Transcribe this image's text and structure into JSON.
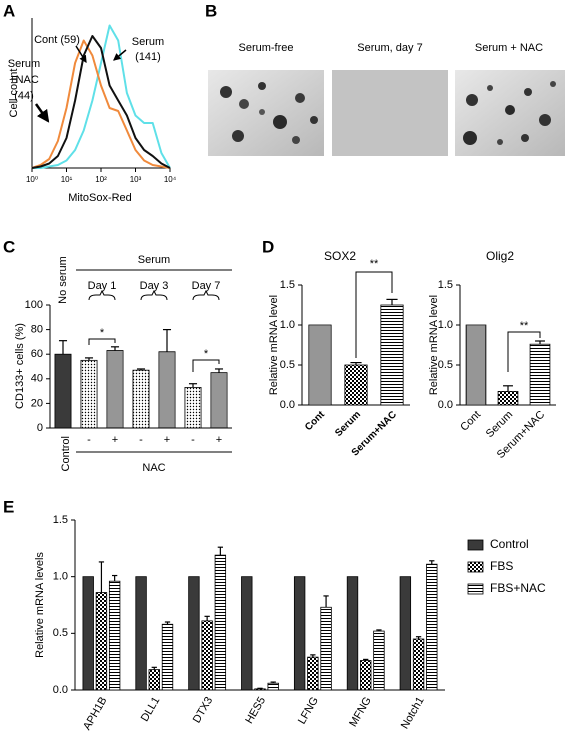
{
  "chart_data": [
    {
      "panel": "A",
      "type": "line",
      "xlabel": "MitoSox-Red",
      "ylabel": "Cell count",
      "log_x": true,
      "x": [
        1,
        1.78,
        3.16,
        5.62,
        10,
        17.8,
        31.6,
        56.2,
        100,
        178,
        316,
        562,
        1000,
        1780,
        3160,
        5620,
        10000
      ],
      "series": [
        {
          "color": "#5fe0e8",
          "values": [
            0,
            0,
            1,
            2,
            5,
            12,
            25,
            45,
            70,
            95,
            85,
            50,
            35,
            30,
            30,
            10,
            0
          ]
        },
        {
          "color": "#f08a3c",
          "values": [
            0,
            2,
            6,
            18,
            40,
            70,
            85,
            75,
            55,
            40,
            38,
            25,
            12,
            5,
            2,
            1,
            0
          ]
        },
        {
          "color": "#111111",
          "values": [
            0,
            1,
            3,
            8,
            20,
            45,
            75,
            88,
            80,
            55,
            45,
            35,
            20,
            12,
            8,
            3,
            0
          ]
        }
      ],
      "xlim": [
        1,
        10000
      ],
      "xticks": [
        {
          "value": 1,
          "label": "10⁰"
        },
        {
          "value": 10,
          "label": "10¹"
        },
        {
          "value": 100,
          "label": "10²"
        },
        {
          "value": 1000,
          "label": "10³"
        },
        {
          "value": 10000,
          "label": "10⁴"
        }
      ],
      "ylim": [
        0,
        100
      ],
      "annotations": [
        "Cont (59)",
        "Serum",
        "(141)",
        "Serum",
        "+NAC",
        "(44)"
      ]
    },
    {
      "panel": "C",
      "type": "bar",
      "ylabel": "CD133+ cells (%)",
      "categories": [
        "Control",
        "-",
        "+",
        "-",
        "+",
        "-",
        "+"
      ],
      "values": [
        60,
        55,
        63,
        47,
        62,
        33,
        45
      ],
      "errors": [
        11,
        2,
        3,
        1,
        18,
        3,
        3
      ],
      "patterns": [
        "dark",
        "dots",
        "dense",
        "dots",
        "dense",
        "dots",
        "dense"
      ],
      "ylim": [
        0,
        100
      ],
      "yticks": [
        0,
        20,
        40,
        60,
        80,
        100
      ],
      "annotations": [
        "No serum",
        "Serum",
        "Day 1",
        "Day 3",
        "Day 7",
        "*",
        "*",
        "NAC"
      ]
    },
    {
      "panel": "D",
      "type": "bar",
      "title": "SOX2",
      "ylabel": "Relative mRNA level",
      "categories": [
        "Cont",
        "Serum",
        "Serum+NAC"
      ],
      "values": [
        1.0,
        0.5,
        1.25
      ],
      "errors": [
        null,
        0.03,
        0.07
      ],
      "patterns": [
        "dense",
        "checker",
        "hlines"
      ],
      "ylim": [
        0,
        1.5
      ],
      "yticks": [
        {
          "value": 0,
          "label": "0.0"
        },
        0.5,
        {
          "value": 1,
          "label": "1.0"
        },
        1.5
      ],
      "annotations": [
        "**"
      ]
    },
    {
      "type": "bar",
      "title": "Olig2",
      "ylabel": "Relative mRNA level",
      "categories": [
        "Cont",
        "Serum",
        "Serum+NAC"
      ],
      "values": [
        1.0,
        0.17,
        0.76
      ],
      "errors": [
        null,
        0.07,
        0.04
      ],
      "patterns": [
        "dense",
        "checker",
        "hlines"
      ],
      "ylim": [
        0,
        1.5
      ],
      "yticks": [
        {
          "value": 0,
          "label": "0.0"
        },
        0.5,
        {
          "value": 1,
          "label": "1.0"
        },
        1.5
      ],
      "annotations": [
        "**"
      ]
    },
    {
      "panel": "E",
      "type": "bar",
      "ylabel": "Relative mRNA levels",
      "categories": [
        "APH1B",
        "DLL1",
        "DTX3",
        "HES5",
        "LFNG",
        "MFNG",
        "Notch1"
      ],
      "series": [
        {
          "name": "Control",
          "pattern": "dark",
          "values": [
            1,
            1,
            1,
            1,
            1,
            1,
            1
          ]
        },
        {
          "name": "FBS",
          "pattern": "checker",
          "values": [
            0.86,
            0.18,
            0.61,
            0.01,
            0.29,
            0.26,
            0.45
          ],
          "errors": [
            0.27,
            0.02,
            0.04,
            0.005,
            0.02,
            0.01,
            0.02
          ]
        },
        {
          "name": "FBS+NAC",
          "pattern": "hlines",
          "values": [
            0.96,
            0.58,
            1.19,
            0.06,
            0.73,
            0.52,
            1.11
          ],
          "errors": [
            0.05,
            0.02,
            0.07,
            0.01,
            0.1,
            0.01,
            0.03
          ]
        }
      ],
      "ylim": [
        0,
        1.5
      ],
      "yticks": [
        {
          "value": 0,
          "label": "0.0"
        },
        0.5,
        {
          "value": 1,
          "label": "1.0"
        },
        1.5
      ],
      "legend": "right"
    }
  ],
  "panel_b": {
    "label": "B",
    "captions": [
      "Serum-free",
      "Serum, day 7",
      "Serum + NAC"
    ]
  }
}
